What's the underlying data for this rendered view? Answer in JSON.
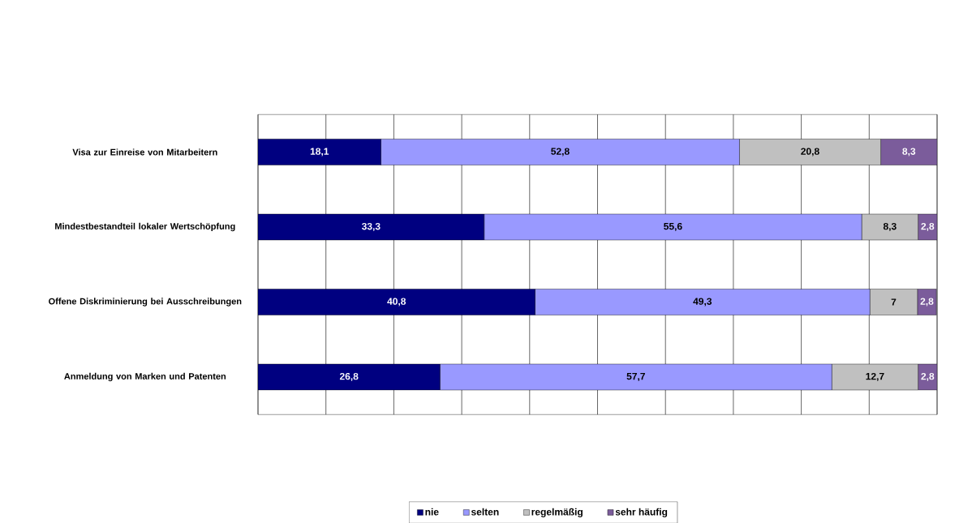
{
  "chart_data": {
    "type": "bar",
    "orientation": "horizontal",
    "stacked": true,
    "categories": [
      "Visa zur Einreise von Mitarbeitern",
      "Mindestbestandteil lokaler Wertschöpfung",
      "Offene Diskriminierung bei Ausschreibungen",
      "Anmeldung von Marken und Patenten"
    ],
    "series": [
      {
        "name": "nie",
        "color": "#000080",
        "values": [
          18.1,
          33.3,
          40.8,
          26.8
        ],
        "value_labels": [
          "18,1",
          "33,3",
          "40,8",
          "26,8"
        ]
      },
      {
        "name": "selten",
        "color": "#9999ff",
        "values": [
          52.8,
          55.6,
          49.3,
          57.7
        ],
        "value_labels": [
          "52,8",
          "55,6",
          "49,3",
          "57,7"
        ]
      },
      {
        "name": "regelmäßig",
        "color": "#c0c0c0",
        "values": [
          20.8,
          8.3,
          7,
          12.7
        ],
        "value_labels": [
          "20,8",
          "8,3",
          "7",
          "12,7"
        ]
      },
      {
        "name": "sehr häufig",
        "color": "#7b5c9b",
        "values": [
          8.3,
          2.8,
          2.8,
          2.8
        ],
        "value_labels": [
          "8,3",
          "2,8",
          "2,8",
          "2,8"
        ]
      }
    ],
    "data_labels": true,
    "grid": "x",
    "legend": "bottom"
  }
}
